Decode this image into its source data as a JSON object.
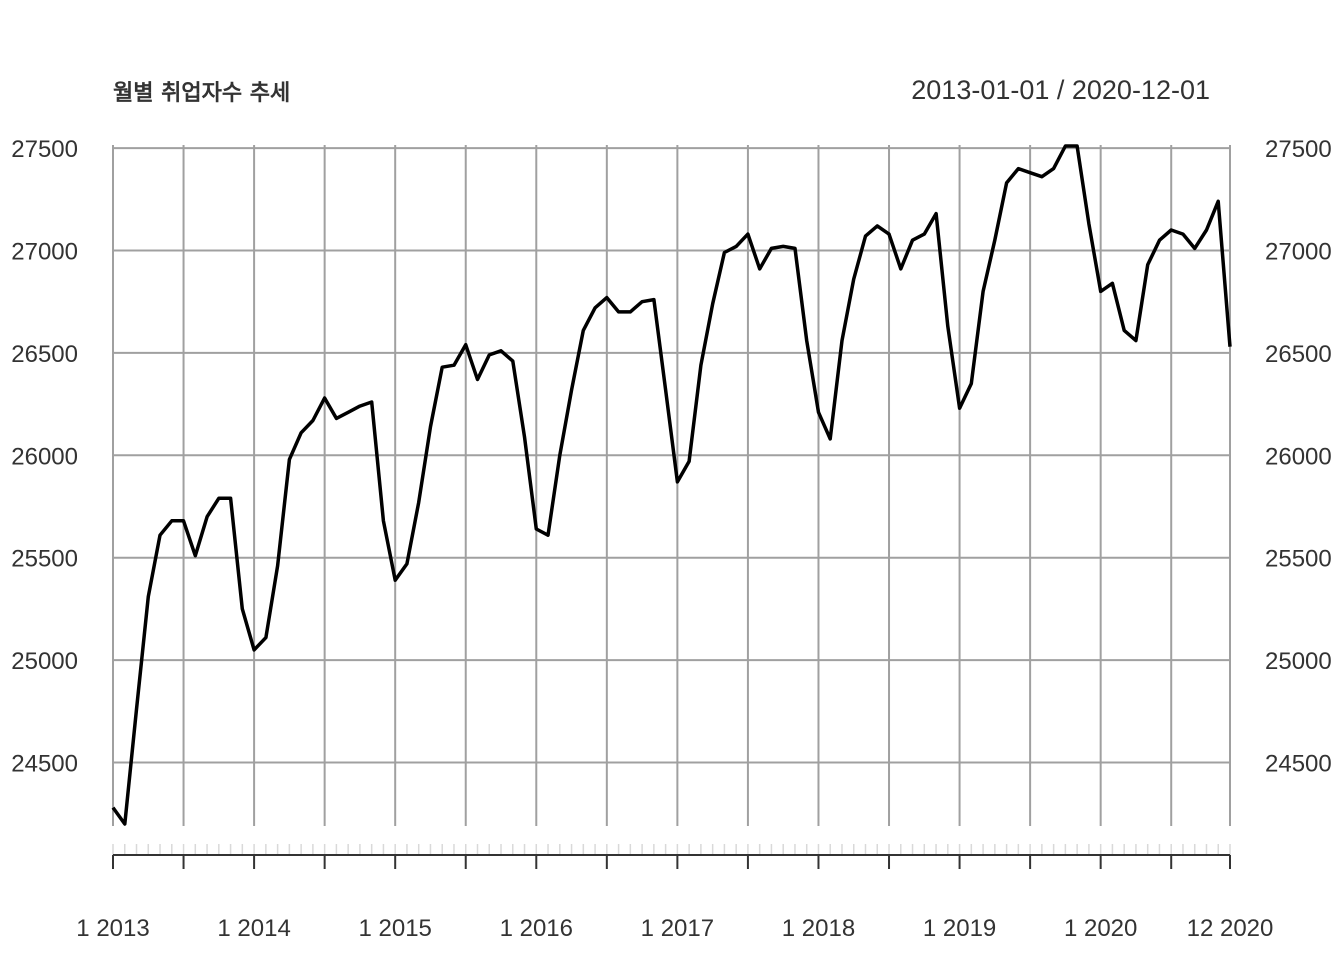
{
  "chart_data": {
    "type": "line",
    "title": "월별 취업자수 추세",
    "date_range": "2013-01-01 / 2020-12-01",
    "x": [
      "2013-01",
      "2013-02",
      "2013-03",
      "2013-04",
      "2013-05",
      "2013-06",
      "2013-07",
      "2013-08",
      "2013-09",
      "2013-10",
      "2013-11",
      "2013-12",
      "2014-01",
      "2014-02",
      "2014-03",
      "2014-04",
      "2014-05",
      "2014-06",
      "2014-07",
      "2014-08",
      "2014-09",
      "2014-10",
      "2014-11",
      "2014-12",
      "2015-01",
      "2015-02",
      "2015-03",
      "2015-04",
      "2015-05",
      "2015-06",
      "2015-07",
      "2015-08",
      "2015-09",
      "2015-10",
      "2015-11",
      "2015-12",
      "2016-01",
      "2016-02",
      "2016-03",
      "2016-04",
      "2016-05",
      "2016-06",
      "2016-07",
      "2016-08",
      "2016-09",
      "2016-10",
      "2016-11",
      "2016-12",
      "2017-01",
      "2017-02",
      "2017-03",
      "2017-04",
      "2017-05",
      "2017-06",
      "2017-07",
      "2017-08",
      "2017-09",
      "2017-10",
      "2017-11",
      "2017-12",
      "2018-01",
      "2018-02",
      "2018-03",
      "2018-04",
      "2018-05",
      "2018-06",
      "2018-07",
      "2018-08",
      "2018-09",
      "2018-10",
      "2018-11",
      "2018-12",
      "2019-01",
      "2019-02",
      "2019-03",
      "2019-04",
      "2019-05",
      "2019-06",
      "2019-07",
      "2019-08",
      "2019-09",
      "2019-10",
      "2019-11",
      "2019-12",
      "2020-01",
      "2020-02",
      "2020-03",
      "2020-04",
      "2020-05",
      "2020-06",
      "2020-07",
      "2020-08",
      "2020-09",
      "2020-10",
      "2020-11",
      "2020-12"
    ],
    "values": [
      24280,
      24200,
      24760,
      25310,
      25610,
      25680,
      25680,
      25510,
      25700,
      25790,
      25790,
      25250,
      25050,
      25110,
      25460,
      25980,
      26110,
      26170,
      26280,
      26180,
      26210,
      26240,
      26260,
      25680,
      25390,
      25470,
      25770,
      26140,
      26430,
      26440,
      26540,
      26370,
      26490,
      26510,
      26460,
      26090,
      25640,
      25610,
      26000,
      26320,
      26610,
      26720,
      26770,
      26700,
      26700,
      26750,
      26760,
      26320,
      25870,
      25970,
      26440,
      26740,
      26990,
      27020,
      27080,
      26910,
      27010,
      27020,
      27010,
      26560,
      26210,
      26080,
      26560,
      26860,
      27070,
      27120,
      27080,
      26910,
      27050,
      27080,
      27180,
      26630,
      26230,
      26350,
      26800,
      27050,
      27330,
      27400,
      27380,
      27360,
      27400,
      27510,
      27510,
      27130,
      26800,
      26840,
      26610,
      26560,
      26930,
      27050,
      27100,
      27080,
      27010,
      27100,
      27240,
      26530
    ],
    "yticks": [
      24500,
      25000,
      25500,
      26000,
      26500,
      27000,
      27500
    ],
    "ylim": [
      24195,
      27515
    ],
    "xtick_labels": [
      "1 2013",
      "1 2014",
      "1 2015",
      "1 2016",
      "1 2017",
      "1 2018",
      "1 2019",
      "1 2020",
      "12 2020"
    ],
    "grid": true,
    "colors": {
      "line": "#000000",
      "grid": "#a0a0a0",
      "text": "#333333"
    }
  }
}
